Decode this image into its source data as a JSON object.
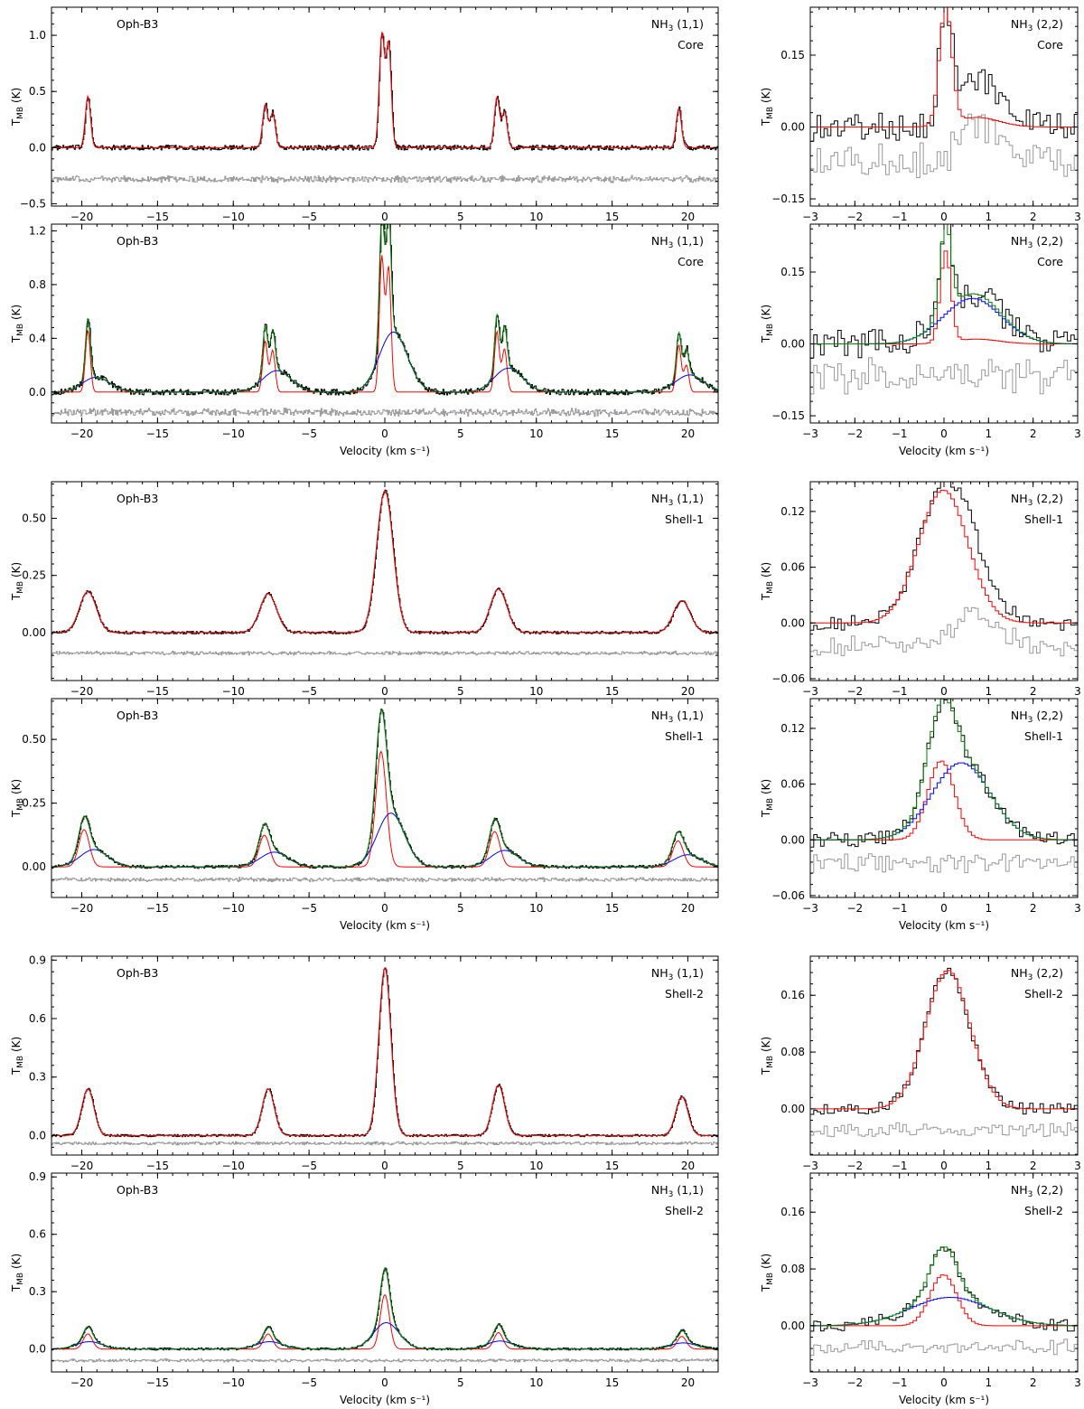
{
  "figure": {
    "source_label": "Oph-B3",
    "xlabel": "Velocity (km s⁻¹)"
  },
  "chart_data": [
    {
      "id": "core-11-a",
      "type": "line",
      "source": "Oph-B3",
      "line": "NH3 (1,1)",
      "region": "Core",
      "ylabel": "T_MB (K)",
      "xlim": [
        -22,
        22
      ],
      "ylim": [
        -0.52,
        1.25
      ],
      "xticks": [
        -20,
        -15,
        -10,
        -5,
        0,
        5,
        10,
        15,
        20
      ],
      "yticks": [
        -0.5,
        0.0,
        0.5,
        1.0
      ],
      "ytick_labels": [
        "−0.5",
        "0.0",
        "0.5",
        "1.0"
      ],
      "show_xlabel": false,
      "noise": 0.022,
      "components": [
        {
          "name": "fit",
          "color": "#ff0000",
          "scale": 1.0,
          "width": 0.17,
          "vshift": 0
        }
      ],
      "groups": [
        {
          "v": -19.6,
          "a": [
            0.46
          ]
        },
        {
          "v": -7.9,
          "a": [
            0.38
          ]
        },
        {
          "v": -7.4,
          "a": [
            0.31
          ]
        },
        {
          "v": -0.2,
          "a": [
            1.0
          ]
        },
        {
          "v": 0.25,
          "a": [
            0.92
          ]
        },
        {
          "v": 7.4,
          "a": [
            0.45
          ]
        },
        {
          "v": 7.9,
          "a": [
            0.32
          ]
        },
        {
          "v": 19.4,
          "a": [
            0.35
          ]
        }
      ],
      "residual_offset": -0.28
    },
    {
      "id": "core-22-a",
      "type": "line",
      "source": "",
      "line": "NH3 (2,2)",
      "region": "Core",
      "ylabel": "T_MB (K)",
      "xlim": [
        -3,
        3
      ],
      "ylim": [
        -0.165,
        0.25
      ],
      "xticks": [
        -3,
        -2,
        -1,
        0,
        1,
        2,
        3
      ],
      "yticks": [
        -0.15,
        0.0,
        0.15
      ],
      "ytick_labels": [
        "−0.15",
        "0.00",
        "0.15"
      ],
      "show_xlabel": false,
      "noise": 0.03,
      "components": [
        {
          "name": "fit",
          "color": "#ff0000",
          "v": 0.0,
          "amp": 0.245,
          "width": 0.14,
          "wing": 0.02
        }
      ],
      "residual_offset": -0.07
    },
    {
      "id": "core-11-b",
      "type": "line",
      "source": "Oph-B3",
      "line": "NH3 (1,1)",
      "region": "Core",
      "ylabel": "T_MB (K)",
      "xlim": [
        -22,
        22
      ],
      "ylim": [
        -0.23,
        1.25
      ],
      "xticks": [
        -20,
        -15,
        -10,
        -5,
        0,
        5,
        10,
        15,
        20
      ],
      "yticks": [
        0.0,
        0.4,
        0.8,
        1.2
      ],
      "ytick_labels": [
        "0.0",
        "0.4",
        "0.8",
        "1.2"
      ],
      "show_xlabel": true,
      "noise": 0.022,
      "components": [
        {
          "name": "narrow",
          "color": "#ff0000",
          "scale": 1.0,
          "width": 0.16,
          "vshift": 0
        },
        {
          "name": "broad",
          "color": "#0000ff",
          "scale": 0.24,
          "width": 0.9,
          "vshift": 0.55
        }
      ],
      "groups": [
        {
          "v": -19.6,
          "a": [
            0.46
          ]
        },
        {
          "v": -7.9,
          "a": [
            0.38
          ]
        },
        {
          "v": -7.4,
          "a": [
            0.31
          ]
        },
        {
          "v": -0.2,
          "a": [
            1.0
          ]
        },
        {
          "v": 0.25,
          "a": [
            0.92
          ]
        },
        {
          "v": 7.4,
          "a": [
            0.45
          ]
        },
        {
          "v": 7.9,
          "a": [
            0.32
          ]
        },
        {
          "v": 19.4,
          "a": [
            0.35
          ]
        },
        {
          "v": 19.9,
          "a": [
            0.2
          ]
        }
      ],
      "residual_offset": -0.15
    },
    {
      "id": "core-22-b",
      "type": "line",
      "source": "",
      "line": "NH3 (2,2)",
      "region": "Core",
      "ylabel": "T_MB (K)",
      "xlim": [
        -3,
        3
      ],
      "ylim": [
        -0.165,
        0.25
      ],
      "xticks": [
        -3,
        -2,
        -1,
        0,
        1,
        2,
        3
      ],
      "yticks": [
        -0.15,
        0.0,
        0.15
      ],
      "ytick_labels": [
        "−0.15",
        "0.00",
        "0.15"
      ],
      "show_xlabel": true,
      "noise": 0.03,
      "components": [
        {
          "name": "narrow",
          "color": "#ff0000",
          "v": 0.0,
          "amp": 0.19,
          "width": 0.12,
          "wing": 0.01
        },
        {
          "name": "broad",
          "color": "#0000ff",
          "v": 0.6,
          "amp": 0.095,
          "width": 0.65,
          "wing": 0
        }
      ],
      "residual_offset": -0.07
    },
    {
      "id": "shell1-11-a",
      "type": "line",
      "source": "Oph-B3",
      "line": "NH3 (1,1)",
      "region": "Shell-1",
      "ylabel": "T_MB (K)",
      "xlim": [
        -22,
        22
      ],
      "ylim": [
        -0.21,
        0.66
      ],
      "xticks": [
        -20,
        -15,
        -10,
        -5,
        0,
        5,
        10,
        15,
        20
      ],
      "yticks": [
        0.0,
        0.25,
        0.5
      ],
      "ytick_labels": [
        "0.00",
        "0.25",
        "0.50"
      ],
      "show_xlabel": false,
      "noise": 0.006,
      "components": [
        {
          "name": "fit",
          "color": "#ff0000",
          "scale": 1.0,
          "width": 0.55,
          "vshift": 0
        }
      ],
      "groups": [
        {
          "v": -19.6,
          "a": [
            0.18
          ]
        },
        {
          "v": -7.7,
          "a": [
            0.17
          ]
        },
        {
          "v": 0.0,
          "a": [
            0.62
          ]
        },
        {
          "v": 7.5,
          "a": [
            0.19
          ]
        },
        {
          "v": 19.6,
          "a": [
            0.14
          ]
        }
      ],
      "residual_offset": -0.09
    },
    {
      "id": "shell1-22-a",
      "type": "line",
      "source": "",
      "line": "NH3 (2,2)",
      "region": "Shell-1",
      "ylabel": "T_MB (K)",
      "xlim": [
        -3,
        3
      ],
      "ylim": [
        -0.062,
        0.152
      ],
      "xticks": [
        -3,
        -2,
        -1,
        0,
        1,
        2,
        3
      ],
      "yticks": [
        -0.06,
        0.0,
        0.06,
        0.12
      ],
      "ytick_labels": [
        "−0.06",
        "0.00",
        "0.06",
        "0.12"
      ],
      "show_xlabel": false,
      "noise": 0.008,
      "components": [
        {
          "name": "fit",
          "color": "#ff0000",
          "v": -0.05,
          "amp": 0.143,
          "width": 0.55,
          "wing": 0
        }
      ],
      "residual_offset": -0.025
    },
    {
      "id": "shell1-11-b",
      "type": "line",
      "source": "Oph-B3",
      "line": "NH3 (1,1)",
      "region": "Shell-1",
      "ylabel": "T_MB (K)",
      "xlim": [
        -22,
        22
      ],
      "ylim": [
        -0.12,
        0.66
      ],
      "xticks": [
        -20,
        -15,
        -10,
        -5,
        0,
        5,
        10,
        15,
        20
      ],
      "yticks": [
        0.0,
        0.25,
        0.5
      ],
      "ytick_labels": [
        "0.00",
        "0.25",
        "0.50"
      ],
      "show_xlabel": true,
      "noise": 0.006,
      "components": [
        {
          "name": "narrow",
          "color": "#ff0000",
          "scale": 0.73,
          "width": 0.35,
          "vshift": -0.25
        },
        {
          "name": "broad",
          "color": "#0000ff",
          "scale": 0.34,
          "width": 0.9,
          "vshift": 0.4
        }
      ],
      "groups": [
        {
          "v": -19.6,
          "a": [
            0.2
          ]
        },
        {
          "v": -7.7,
          "a": [
            0.17
          ]
        },
        {
          "v": 0.0,
          "a": [
            0.62
          ]
        },
        {
          "v": 7.5,
          "a": [
            0.19
          ]
        },
        {
          "v": 19.6,
          "a": [
            0.14
          ]
        }
      ],
      "residual_offset": -0.05
    },
    {
      "id": "shell1-22-b",
      "type": "line",
      "source": "",
      "line": "NH3 (2,2)",
      "region": "Shell-1",
      "ylabel": "T_MB (K)",
      "xlim": [
        -3,
        3
      ],
      "ylim": [
        -0.062,
        0.152
      ],
      "xticks": [
        -3,
        -2,
        -1,
        0,
        1,
        2,
        3
      ],
      "yticks": [
        -0.06,
        0.0,
        0.06,
        0.12
      ],
      "ytick_labels": [
        "−0.06",
        "0.00",
        "0.06",
        "0.12"
      ],
      "show_xlabel": true,
      "noise": 0.008,
      "components": [
        {
          "name": "narrow",
          "color": "#ff0000",
          "v": -0.1,
          "amp": 0.085,
          "width": 0.3,
          "wing": 0
        },
        {
          "name": "broad",
          "color": "#0000ff",
          "v": 0.35,
          "amp": 0.083,
          "width": 0.65,
          "wing": 0
        }
      ],
      "residual_offset": -0.025
    },
    {
      "id": "shell2-11-a",
      "type": "line",
      "source": "Oph-B3",
      "line": "NH3 (1,1)",
      "region": "Shell-2",
      "ylabel": "T_MB (K)",
      "xlim": [
        -22,
        22
      ],
      "ylim": [
        -0.1,
        0.92
      ],
      "xticks": [
        -20,
        -15,
        -10,
        -5,
        0,
        5,
        10,
        15,
        20
      ],
      "yticks": [
        0.0,
        0.3,
        0.6,
        0.9
      ],
      "ytick_labels": [
        "0.0",
        "0.3",
        "0.6",
        "0.9"
      ],
      "show_xlabel": false,
      "noise": 0.006,
      "components": [
        {
          "name": "fit",
          "color": "#ff0000",
          "scale": 1.0,
          "width": 0.4,
          "vshift": 0
        }
      ],
      "groups": [
        {
          "v": -19.6,
          "a": [
            0.24
          ]
        },
        {
          "v": -7.7,
          "a": [
            0.24
          ]
        },
        {
          "v": 0.0,
          "a": [
            0.86
          ]
        },
        {
          "v": 7.5,
          "a": [
            0.26
          ]
        },
        {
          "v": 19.6,
          "a": [
            0.2
          ]
        }
      ],
      "residual_offset": -0.04
    },
    {
      "id": "shell2-22-a",
      "type": "line",
      "source": "",
      "line": "NH3 (2,2)",
      "region": "Shell-2",
      "ylabel": "T_MB (K)",
      "xlim": [
        -3,
        3
      ],
      "ylim": [
        -0.065,
        0.215
      ],
      "xticks": [
        -3,
        -2,
        -1,
        0,
        1,
        2,
        3
      ],
      "yticks": [
        0.0,
        0.08,
        0.16
      ],
      "ytick_labels": [
        "0.00",
        "0.08",
        "0.16"
      ],
      "show_xlabel": false,
      "noise": 0.008,
      "components": [
        {
          "name": "fit",
          "color": "#ff0000",
          "v": 0.05,
          "amp": 0.195,
          "width": 0.5,
          "wing": 0
        }
      ],
      "residual_offset": -0.03
    },
    {
      "id": "shell2-11-b",
      "type": "line",
      "source": "Oph-B3",
      "line": "NH3 (1,1)",
      "region": "Shell-2",
      "ylabel": "T_MB (K)",
      "xlim": [
        -22,
        22
      ],
      "ylim": [
        -0.12,
        0.92
      ],
      "xticks": [
        -20,
        -15,
        -10,
        -5,
        0,
        5,
        10,
        15,
        20
      ],
      "yticks": [
        0.0,
        0.3,
        0.6,
        0.9
      ],
      "ytick_labels": [
        "0.0",
        "0.3",
        "0.6",
        "0.9"
      ],
      "show_xlabel": true,
      "noise": 0.006,
      "components": [
        {
          "name": "narrow",
          "color": "#ff0000",
          "scale": 0.33,
          "width": 0.3,
          "vshift": 0
        },
        {
          "name": "broad",
          "color": "#0000ff",
          "scale": 0.16,
          "width": 0.85,
          "vshift": 0.1
        }
      ],
      "groups": [
        {
          "v": -19.6,
          "a": [
            0.24
          ]
        },
        {
          "v": -7.7,
          "a": [
            0.24
          ]
        },
        {
          "v": 0.0,
          "a": [
            0.86
          ]
        },
        {
          "v": 7.5,
          "a": [
            0.26
          ]
        },
        {
          "v": 19.6,
          "a": [
            0.2
          ]
        }
      ],
      "residual_offset": -0.06
    },
    {
      "id": "shell2-22-b",
      "type": "line",
      "source": "",
      "line": "NH3 (2,2)",
      "region": "Shell-2",
      "ylabel": "T_MB (K)",
      "xlim": [
        -3,
        3
      ],
      "ylim": [
        -0.065,
        0.215
      ],
      "xticks": [
        -3,
        -2,
        -1,
        0,
        1,
        2,
        3
      ],
      "yticks": [
        0.0,
        0.08,
        0.16
      ],
      "ytick_labels": [
        "0.00",
        "0.08",
        "0.16"
      ],
      "show_xlabel": true,
      "noise": 0.008,
      "components": [
        {
          "name": "narrow",
          "color": "#ff0000",
          "v": -0.05,
          "amp": 0.072,
          "width": 0.3,
          "wing": 0
        },
        {
          "name": "broad",
          "color": "#0000ff",
          "v": 0.1,
          "amp": 0.04,
          "width": 0.9,
          "wing": 0
        }
      ],
      "residual_offset": -0.03
    }
  ]
}
